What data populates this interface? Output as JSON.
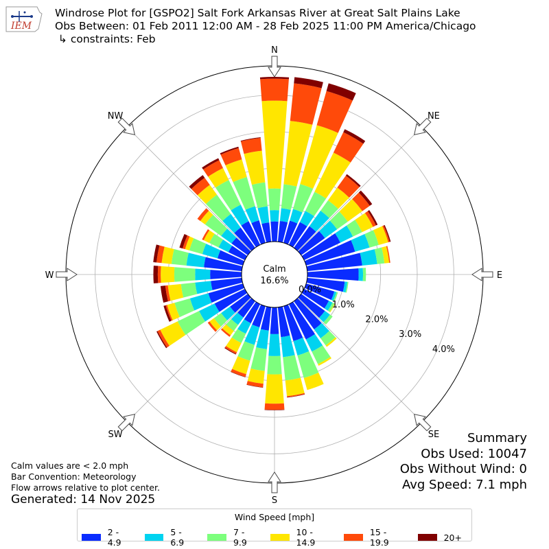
{
  "title": {
    "line1": "Windrose Plot for [GSPO2] Salt Fork Arkansas River at Great Salt Plains Lake",
    "line2": "Obs Between: 01 Feb 2011 12:00 AM - 28 Feb 2025 11:00 PM America/Chicago",
    "line3": " ↳ constraints: Feb"
  },
  "logo": {
    "text": "IEM",
    "icon": "iem-logo-icon"
  },
  "calm": {
    "label": "Calm",
    "value": "16.6%"
  },
  "notes": {
    "line1": "Calm values are < 2.0 mph",
    "line2": "Bar Convention: Meteorology",
    "line3": "Flow arrows relative to plot center."
  },
  "generated": "Generated: 14 Nov 2025",
  "summary": {
    "heading": "Summary",
    "obs_used": "Obs Used: 10047",
    "obs_without_wind": "Obs Without Wind: 0",
    "avg_speed": "Avg Speed: 7.1 mph"
  },
  "legend": {
    "title": "Wind Speed [mph]",
    "items": [
      {
        "label": "2 - 4.9",
        "color": "#0a2cff"
      },
      {
        "label": "5 - 6.9",
        "color": "#00d3f0"
      },
      {
        "label": "7 - 9.9",
        "color": "#7dff7d"
      },
      {
        "label": "10 - 14.9",
        "color": "#ffe600"
      },
      {
        "label": "15 - 19.9",
        "color": "#ff4a0a"
      },
      {
        "label": "20+",
        "color": "#800000"
      }
    ]
  },
  "chart_data": {
    "type": "windrose",
    "direction_labels": [
      "N",
      "NE",
      "E",
      "SE",
      "S",
      "SW",
      "W",
      "NW"
    ],
    "radial_ticks": [
      "0.0%",
      "1.0%",
      "2.0%",
      "3.0%",
      "4.0%"
    ],
    "radial_tick_values": [
      0,
      1,
      2,
      3,
      4
    ],
    "rmax": 4.8,
    "directions_deg": [
      0,
      10,
      20,
      30,
      40,
      50,
      60,
      70,
      80,
      90,
      100,
      110,
      120,
      130,
      140,
      150,
      160,
      170,
      180,
      190,
      200,
      210,
      220,
      230,
      240,
      250,
      260,
      270,
      280,
      290,
      300,
      310,
      320,
      330,
      340,
      350
    ],
    "speed_bins": [
      "2 - 4.9",
      "5 - 6.9",
      "7 - 9.9",
      "10 - 14.9",
      "15 - 19.9",
      "20+"
    ],
    "bin_colors": [
      "#0a2cff",
      "#00d3f0",
      "#7dff7d",
      "#ffe600",
      "#ff4a0a",
      "#800000"
    ],
    "cumulative_pct": [
      [
        0.55,
        0.86,
        1.45,
        3.85,
        4.45,
        4.5
      ],
      [
        0.57,
        0.92,
        1.58,
        3.32,
        4.35,
        4.52
      ],
      [
        0.63,
        0.96,
        1.67,
        3.34,
        4.31,
        4.53
      ],
      [
        0.69,
        1.03,
        1.61,
        2.8,
        3.42,
        3.51
      ],
      [
        0.73,
        1.25,
        1.6,
        2.03,
        2.43,
        2.48
      ],
      [
        0.8,
        1.21,
        1.57,
        2.06,
        2.31,
        2.39
      ],
      [
        1.1,
        1.48,
        1.76,
        2.09,
        2.18,
        2.23
      ],
      [
        1.39,
        1.8,
        2.06,
        2.33,
        2.37,
        2.4
      ],
      [
        1.51,
        1.92,
        2.12,
        2.25,
        2.28,
        2.28
      ],
      [
        1.4,
        1.52,
        1.6,
        1.6,
        1.6,
        1.6
      ],
      [
        1.03,
        1.1,
        1.13,
        1.13,
        1.13,
        1.13
      ],
      [
        0.8,
        0.86,
        0.9,
        0.9,
        0.9,
        0.9
      ],
      [
        0.75,
        0.86,
        0.92,
        0.94,
        0.94,
        0.94
      ],
      [
        0.8,
        0.97,
        1.06,
        1.06,
        1.06,
        1.06
      ],
      [
        0.95,
        1.25,
        1.49,
        1.54,
        1.54,
        1.54
      ],
      [
        1.07,
        1.44,
        1.82,
        1.87,
        1.87,
        1.87
      ],
      [
        0.99,
        1.4,
        2.04,
        2.38,
        2.38,
        2.38
      ],
      [
        0.82,
        1.37,
        2.01,
        2.44,
        2.47,
        2.48
      ],
      [
        0.73,
        1.33,
        1.83,
        2.63,
        2.8,
        2.81
      ],
      [
        0.64,
        1.15,
        1.75,
        2.1,
        2.2,
        2.21
      ],
      [
        0.6,
        1.1,
        1.55,
        1.93,
        2.01,
        2.02
      ],
      [
        0.58,
        0.9,
        1.18,
        1.46,
        1.51,
        1.53
      ],
      [
        0.55,
        0.8,
        1.0,
        1.15,
        1.2,
        1.2
      ],
      [
        0.6,
        0.9,
        1.14,
        1.29,
        1.35,
        1.35
      ],
      [
        0.92,
        1.39,
        2.04,
        2.57,
        2.65,
        2.68
      ],
      [
        0.98,
        1.5,
        1.94,
        2.15,
        2.19,
        2.25
      ],
      [
        0.85,
        1.28,
        1.67,
        2.03,
        2.1,
        2.23
      ],
      [
        0.86,
        1.27,
        1.84,
        2.21,
        2.29,
        2.41
      ],
      [
        1.04,
        1.52,
        1.93,
        2.2,
        2.34,
        2.43
      ],
      [
        0.72,
        1.15,
        1.52,
        1.64,
        1.71,
        1.8
      ],
      [
        0.5,
        0.8,
        1.08,
        1.25,
        1.3,
        1.3
      ],
      [
        0.55,
        0.9,
        1.44,
        1.6,
        1.7,
        1.7
      ],
      [
        0.68,
        1.14,
        1.79,
        2.12,
        2.36,
        2.45
      ],
      [
        0.72,
        1.22,
        1.97,
        2.33,
        2.57,
        2.63
      ],
      [
        0.64,
        1.04,
        1.87,
        2.37,
        2.69,
        2.73
      ],
      [
        0.53,
        0.97,
        1.63,
        2.5,
        2.85,
        2.87
      ]
    ]
  }
}
